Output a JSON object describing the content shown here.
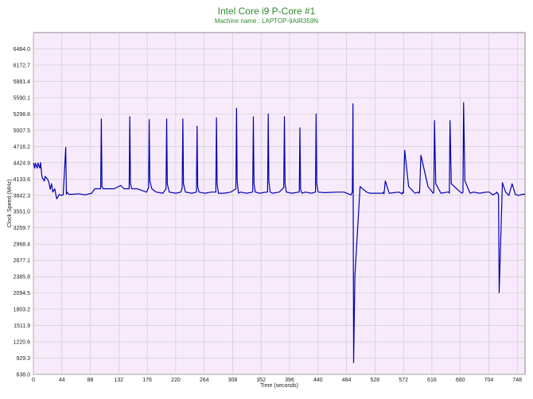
{
  "chart_data": {
    "type": "line",
    "title": "Intel Core i9 P-Core #1",
    "subtitle": "Machine name : LAPTOP-9AIR359N",
    "xlabel": "Time (seconds)",
    "ylabel": "Clock Speed (MHz)",
    "xlim": [
      0,
      760
    ],
    "ylim": [
      638.0,
      6755.4
    ],
    "x_ticks": [
      "0",
      "44",
      "88",
      "132",
      "176",
      "220",
      "264",
      "308",
      "352",
      "396",
      "440",
      "484",
      "528",
      "572",
      "616",
      "660",
      "704",
      "748"
    ],
    "y_ticks": [
      "638.0",
      "929.3",
      "1220.6",
      "1511.9",
      "1803.2",
      "2094.5",
      "2385.8",
      "2677.1",
      "2968.4",
      "3259.7",
      "3551.0",
      "3842.3",
      "4133.6",
      "4424.9",
      "4716.2",
      "5007.5",
      "5298.8",
      "5590.1",
      "5881.4",
      "6172.7",
      "6464.0"
    ],
    "grid": true,
    "background": "#f7ebfb",
    "series": [
      {
        "color": "#0000b0",
        "x": [
          0,
          2,
          3,
          6,
          7,
          10,
          11,
          13,
          14,
          17,
          18,
          22,
          24,
          26,
          28,
          30,
          33,
          36,
          40,
          43,
          46,
          50,
          51,
          52,
          55,
          60,
          70,
          80,
          90,
          95,
          100,
          104,
          105,
          106,
          108,
          115,
          125,
          135,
          140,
          148,
          149,
          150,
          152,
          160,
          175,
          178,
          179,
          180,
          183,
          190,
          200,
          205,
          206,
          207,
          210,
          220,
          228,
          230,
          231,
          232,
          235,
          245,
          252,
          253,
          254,
          256,
          265,
          275,
          282,
          283,
          284,
          286,
          295,
          305,
          313,
          314,
          315,
          317,
          320,
          330,
          339,
          340,
          341,
          343,
          350,
          360,
          362,
          363,
          364,
          366,
          370,
          380,
          387,
          388,
          389,
          391,
          400,
          410,
          411,
          412,
          413,
          415,
          420,
          430,
          436,
          437,
          438,
          440,
          450,
          470,
          480,
          491,
          492,
          493,
          494,
          495,
          497,
          505,
          515,
          520,
          540,
          541,
          542,
          544,
          550,
          565,
          570,
          571,
          572,
          574,
          580,
          590,
          595,
          596,
          597,
          599,
          610,
          618,
          619,
          620,
          622,
          630,
          640,
          642,
          643,
          644,
          646,
          660,
          663,
          664,
          665,
          667,
          675,
          680,
          690,
          700,
          705,
          710,
          715,
          716,
          717,
          718,
          719,
          720,
          725,
          730,
          735,
          740,
          745,
          750,
          755,
          760
        ],
        "y": [
          4420,
          4330,
          4420,
          4330,
          4420,
          4330,
          4430,
          4200,
          4150,
          4100,
          4180,
          4130,
          4070,
          3950,
          4050,
          3900,
          3960,
          3780,
          3860,
          3840,
          3850,
          4700,
          3860,
          3900,
          3860,
          3860,
          3870,
          3850,
          3880,
          3960,
          3960,
          3960,
          5210,
          4000,
          3960,
          3960,
          3960,
          4020,
          3960,
          3960,
          5250,
          4050,
          3960,
          3960,
          3900,
          3980,
          5200,
          4100,
          3960,
          3900,
          3880,
          3960,
          5210,
          4050,
          3900,
          3880,
          3900,
          3980,
          5210,
          4050,
          3900,
          3880,
          3900,
          5080,
          4000,
          3900,
          3880,
          3900,
          3900,
          5230,
          4050,
          3880,
          3880,
          3900,
          3960,
          5400,
          4100,
          3880,
          3900,
          3880,
          3900,
          5250,
          4050,
          3900,
          3880,
          3900,
          3900,
          5300,
          4100,
          3900,
          3880,
          3900,
          3980,
          5250,
          4050,
          3900,
          3880,
          3900,
          3900,
          5050,
          3950,
          3880,
          3900,
          3880,
          3900,
          5300,
          4050,
          3900,
          3890,
          3900,
          3900,
          3850,
          3880,
          3900,
          5480,
          850,
          2400,
          4000,
          3900,
          3880,
          3880,
          3900,
          3870,
          4100,
          3880,
          3900,
          3870,
          3900,
          3880,
          4650,
          4000,
          3880,
          3900,
          3880,
          3900,
          4560,
          4000,
          3880,
          3900,
          5180,
          4050,
          3880,
          3900,
          3900,
          3880,
          5180,
          4050,
          3900,
          3880,
          3900,
          5500,
          4100,
          3880,
          3900,
          3880,
          3900,
          3900,
          3850,
          3880,
          3900,
          3880,
          3880,
          3840,
          2100,
          4070,
          3900,
          3840,
          4050,
          3860,
          3840,
          3860,
          3860
        ]
      }
    ]
  }
}
